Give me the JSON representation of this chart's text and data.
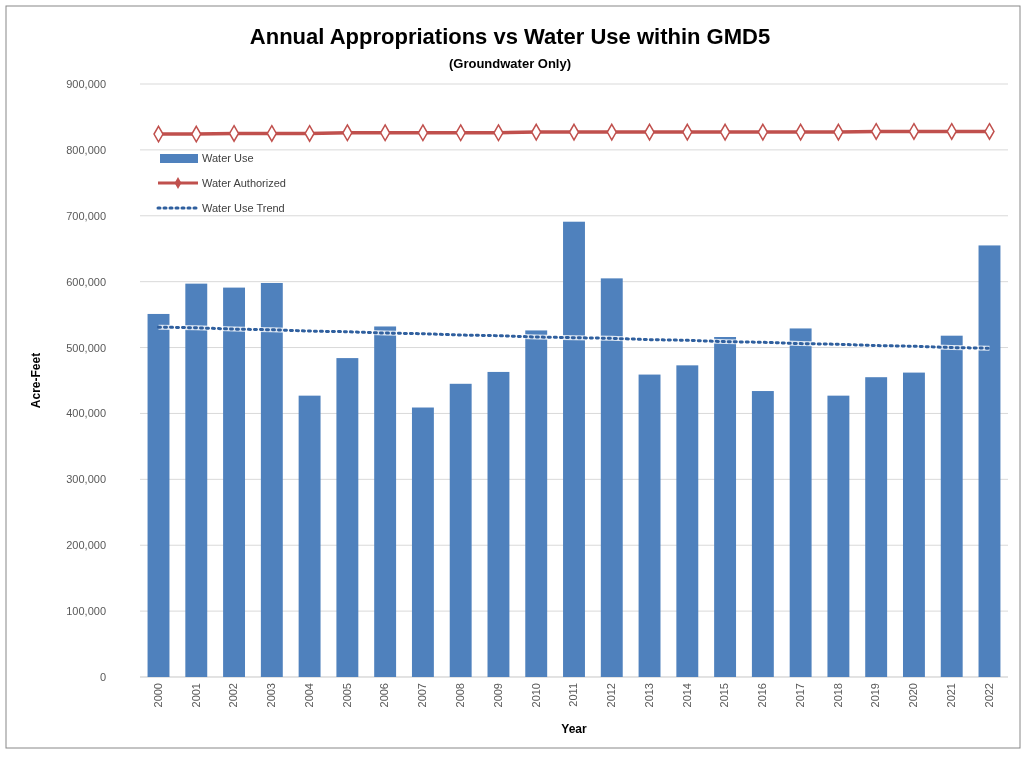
{
  "chart_data": {
    "type": "bar",
    "title": "Annual Appropriations vs Water Use within GMD5",
    "subtitle": "(Groundwater Only)",
    "xlabel": "Year",
    "ylabel": "Acre-Feet",
    "categories": [
      "2000",
      "2001",
      "2002",
      "2003",
      "2004",
      "2005",
      "2006",
      "2007",
      "2008",
      "2009",
      "2010",
      "2011",
      "2012",
      "2013",
      "2014",
      "2015",
      "2016",
      "2017",
      "2018",
      "2019",
      "2020",
      "2021",
      "2022"
    ],
    "series": [
      {
        "name": "Water Use",
        "color": "#4f81bd",
        "values": [
          551000,
          597000,
          591000,
          598000,
          427000,
          484000,
          532000,
          409000,
          445000,
          463000,
          526000,
          691000,
          605000,
          459000,
          473000,
          516000,
          434000,
          529000,
          427000,
          455000,
          462000,
          518000,
          655000
        ]
      },
      {
        "name": "Water Authorized",
        "type": "line",
        "color": "#c0504d",
        "marker": "diamond",
        "line_style": "solid",
        "values": [
          824000,
          824000,
          825000,
          825000,
          825000,
          826000,
          826000,
          826000,
          826000,
          826000,
          827000,
          827000,
          827000,
          827000,
          827000,
          827000,
          827000,
          827000,
          827000,
          828000,
          828000,
          828000,
          828000
        ]
      },
      {
        "name": "Water Use Trend",
        "type": "line",
        "color": "#2f5f9e",
        "marker": "none",
        "line_style": "dotted",
        "values": [
          531000,
          530000,
          528000,
          527000,
          525000,
          524000,
          522000,
          521000,
          519000,
          518000,
          516000,
          515000,
          514000,
          512000,
          511000,
          509000,
          508000,
          506000,
          505000,
          503000,
          502000,
          500000,
          499000
        ]
      }
    ],
    "ylim": [
      0,
      900000
    ],
    "yticks": [
      {
        "value": 0,
        "label": "0"
      },
      {
        "value": 100000,
        "label": "100,000"
      },
      {
        "value": 200000,
        "label": "200,000"
      },
      {
        "value": 300000,
        "label": "300,000"
      },
      {
        "value": 400000,
        "label": "400,000"
      },
      {
        "value": 500000,
        "label": "500,000"
      },
      {
        "value": 600000,
        "label": "600,000"
      },
      {
        "value": 700000,
        "label": "700,000"
      },
      {
        "value": 800000,
        "label": "800,000"
      },
      {
        "value": 900000,
        "label": "900,000"
      }
    ],
    "grid": "y",
    "legend": "top left"
  }
}
